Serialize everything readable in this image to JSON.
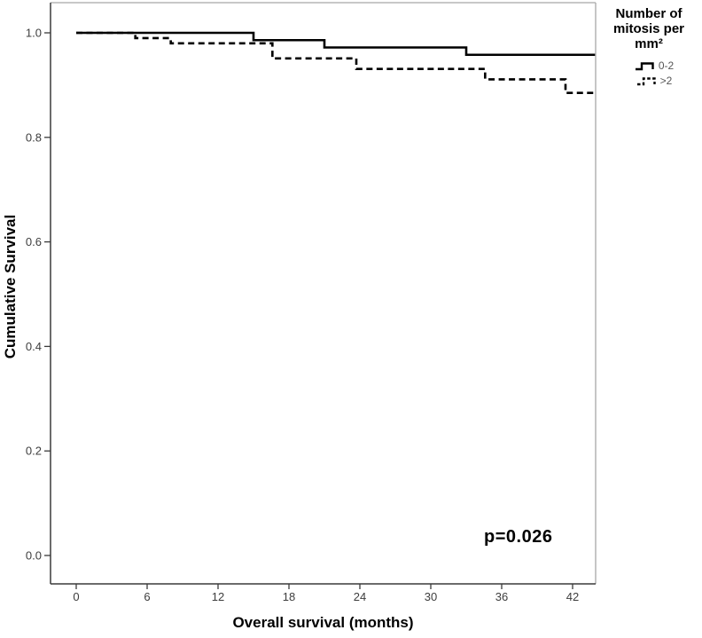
{
  "chart_data": {
    "type": "line",
    "variant": "kaplan_meier_step",
    "title": "",
    "xlabel": "Overall survival (months)",
    "ylabel": "Cumulative Survival",
    "xticks": [
      0,
      6,
      12,
      18,
      24,
      30,
      36,
      42
    ],
    "ytick_labels": [
      "0.0",
      "0.2",
      "0.4",
      "0.6",
      "0.8",
      "1.0"
    ],
    "xlim": [
      -2.2,
      44
    ],
    "ylim": [
      -0.055,
      1.058
    ],
    "grid": false,
    "legend_position": "top-right",
    "annotation": {
      "text": "p=0.026"
    },
    "legend": {
      "title_lines": [
        "Number of",
        "mitosis per",
        "mm²"
      ]
    },
    "colors": {
      "line": "#000000",
      "frame_dark": "#3a3a3a",
      "frame_light": "#a8a8a8",
      "tick_label": "#3d3d3d",
      "legend_label": "#565656"
    },
    "series": [
      {
        "name": "0-2",
        "style": "solid",
        "points": [
          [
            0,
            1.0
          ],
          [
            15,
            0.986
          ],
          [
            21,
            0.972
          ],
          [
            33,
            0.958
          ],
          [
            44,
            0.958
          ]
        ]
      },
      {
        "name": ">2",
        "style": "dashed",
        "points": [
          [
            0,
            1.0
          ],
          [
            5,
            0.99
          ],
          [
            8,
            0.98
          ],
          [
            16.6,
            0.951
          ],
          [
            23.7,
            0.931
          ],
          [
            34.6,
            0.911
          ],
          [
            41.4,
            0.885
          ],
          [
            44,
            0.885
          ]
        ]
      }
    ]
  }
}
